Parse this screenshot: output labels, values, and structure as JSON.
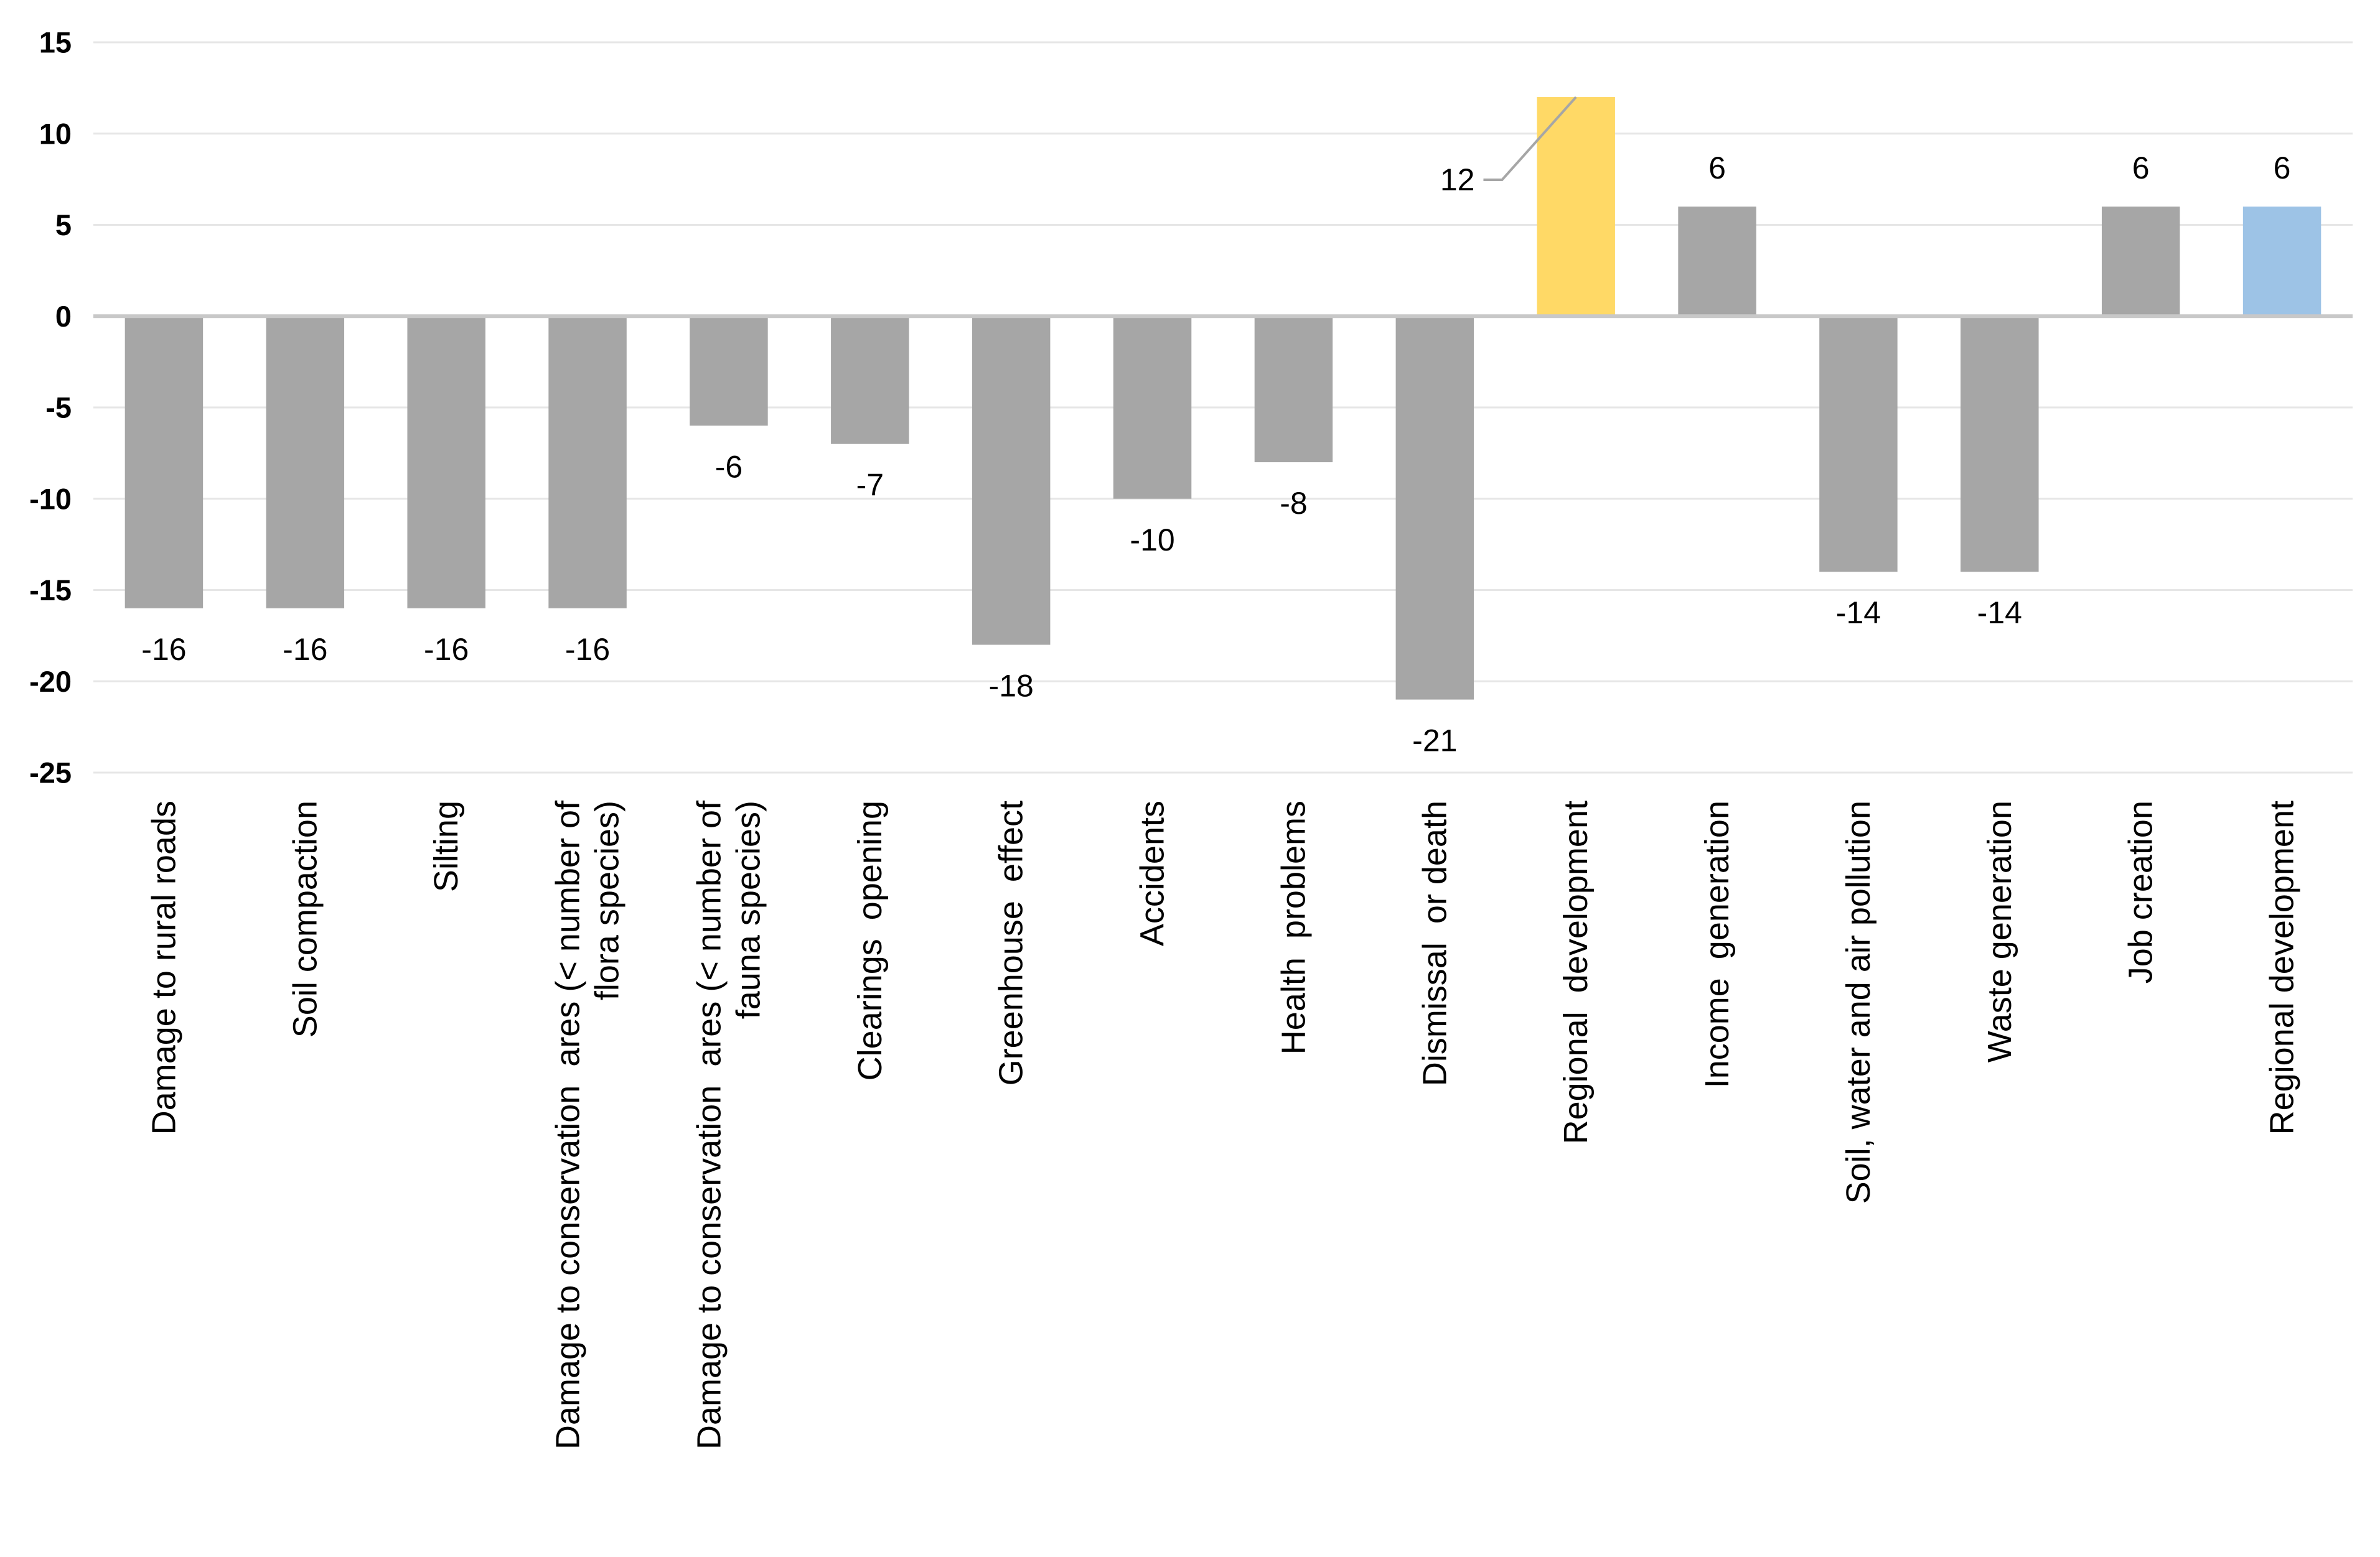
{
  "chart_data": {
    "type": "bar",
    "title": "",
    "xlabel": "",
    "ylabel": "",
    "ylim": [
      -25,
      15
    ],
    "yticks": [
      15,
      10,
      5,
      0,
      -5,
      -10,
      -15,
      -20,
      -25
    ],
    "grid": true,
    "legend": "none",
    "categories": [
      "Damage to rural roads",
      "Soil compaction",
      "Silting",
      "Damage to conservation  ares (< number of flora species)",
      "Damage to conservation  ares (< number of fauna species)",
      "Clearings  opening",
      "Greenhouse  effect",
      "Accidents",
      "Health  problems",
      "Dismissal  or death",
      "Regional  development",
      "Income  generation",
      "Soil, water and air pollution",
      "Waste generation",
      "Job creation",
      "Regional development"
    ],
    "category_lines": [
      [
        "Damage to rural roads"
      ],
      [
        "Soil compaction"
      ],
      [
        "Silting"
      ],
      [
        "Damage to conservation  ares (< number of",
        "flora species)"
      ],
      [
        "Damage to conservation  ares (< number of",
        "fauna species)"
      ],
      [
        "Clearings  opening"
      ],
      [
        "Greenhouse  effect"
      ],
      [
        "Accidents"
      ],
      [
        "Health  problems"
      ],
      [
        "Dismissal  or death"
      ],
      [
        "Regional  development"
      ],
      [
        "Income  generation"
      ],
      [
        "Soil, water and air pollution"
      ],
      [
        "Waste generation"
      ],
      [
        "Job creation"
      ],
      [
        "Regional development"
      ]
    ],
    "values": [
      -16,
      -16,
      -16,
      -16,
      -6,
      -7,
      -18,
      -10,
      -8,
      -21,
      12,
      6,
      -14,
      -14,
      6,
      6
    ],
    "data_labels": [
      "-16",
      "-16",
      "-16",
      "-16",
      "-6",
      "-7",
      "-18",
      "-10",
      "-8",
      "-21",
      "12",
      "6",
      "-14",
      "-14",
      "6",
      "6"
    ],
    "bar_colors": [
      "#a6a6a6",
      "#a6a6a6",
      "#a6a6a6",
      "#a6a6a6",
      "#a6a6a6",
      "#a6a6a6",
      "#a6a6a6",
      "#a6a6a6",
      "#a6a6a6",
      "#a6a6a6",
      "#ffd966",
      "#a6a6a6",
      "#a6a6a6",
      "#a6a6a6",
      "#a6a6a6",
      "#9dc3e6"
    ],
    "colors": {
      "default_bar": "#a6a6a6",
      "highlight_bar": "#ffd966",
      "accent_bar": "#9dc3e6",
      "gridline": "#e6e6e6",
      "zero_line": "#c8c8c8",
      "leader_line": "#a6a6a6"
    }
  }
}
